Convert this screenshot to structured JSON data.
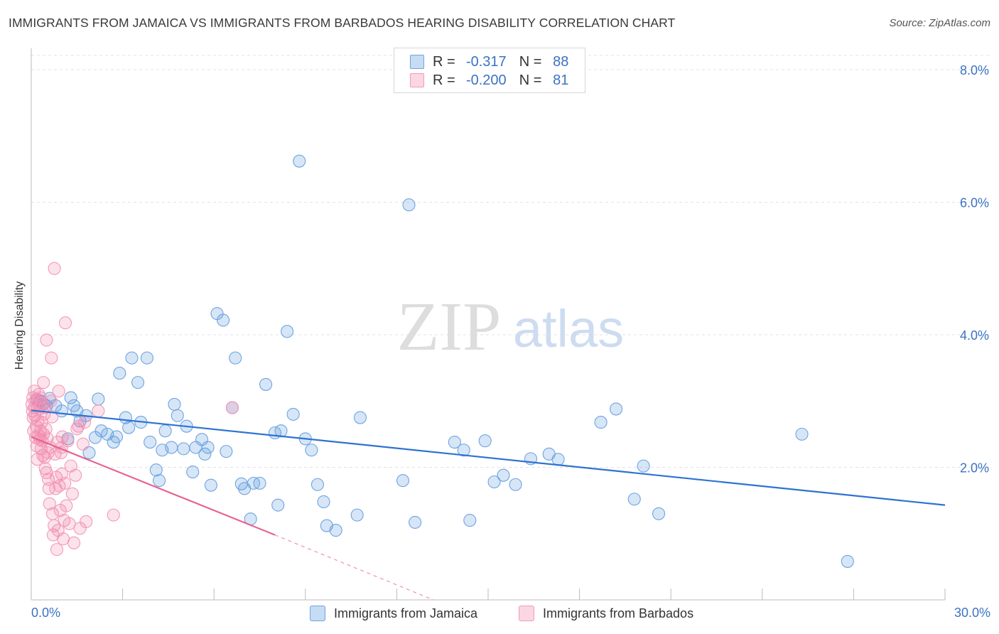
{
  "title": "IMMIGRANTS FROM JAMAICA VS IMMIGRANTS FROM BARBADOS HEARING DISABILITY CORRELATION CHART",
  "source": "Source: ZipAtlas.com",
  "watermark": {
    "zip": "ZIP",
    "atlas": "atlas"
  },
  "legend": {
    "r_key": "R =",
    "n_key": "N =",
    "rows": [
      {
        "r": "-0.317",
        "n": "88",
        "color": "#5b9ae0"
      },
      {
        "r": "-0.200",
        "n": "81",
        "color": "#f07aa3"
      }
    ]
  },
  "bottom_legend": [
    "Immigrants from Jamaica",
    "Immigrants from Barbados"
  ],
  "x_tick_labels": {
    "left": "0.0%",
    "right": "30.0%"
  },
  "colors": {
    "jamaica_fill": "rgba(91,154,224,0.25)",
    "jamaica_stroke": "#6fa3e0",
    "jamaica_line": "#2e72d2",
    "barbados_fill": "rgba(240,122,163,0.22)",
    "barbados_stroke": "#f29ab9",
    "barbados_line": "#e8628f",
    "tick_label": "#3b72c4",
    "grid": "#e3e3e3"
  },
  "chart_data": {
    "type": "scatter",
    "title": "IMMIGRANTS FROM JAMAICA VS IMMIGRANTS FROM BARBADOS HEARING DISABILITY CORRELATION CHART",
    "xlabel": "",
    "ylabel": "Hearing Disability",
    "xlim": [
      0,
      30
    ],
    "ylim": [
      0,
      8.3
    ],
    "y_ticks": [
      2,
      4,
      6,
      8
    ],
    "y_tick_labels": [
      "2.0%",
      "4.0%",
      "6.0%",
      "8.0%"
    ],
    "x_tick_labels": [
      "0.0%",
      "30.0%"
    ],
    "grid": "horizontal dashed",
    "legend_position": "top-center",
    "series": [
      {
        "name": "Immigrants from Jamaica",
        "r": -0.317,
        "n": 88,
        "trend": {
          "x": [
            0,
            30
          ],
          "y": [
            2.86,
            1.43
          ]
        },
        "points": [
          [
            0.2,
            3.02
          ],
          [
            0.3,
            3.0
          ],
          [
            0.4,
            2.96
          ],
          [
            0.5,
            2.93
          ],
          [
            0.6,
            3.04
          ],
          [
            0.8,
            2.93
          ],
          [
            1.0,
            2.85
          ],
          [
            1.2,
            2.43
          ],
          [
            1.3,
            3.05
          ],
          [
            1.4,
            2.93
          ],
          [
            1.5,
            2.85
          ],
          [
            1.6,
            2.7
          ],
          [
            1.8,
            2.78
          ],
          [
            1.9,
            2.22
          ],
          [
            2.1,
            2.45
          ],
          [
            2.2,
            3.03
          ],
          [
            2.3,
            2.55
          ],
          [
            2.5,
            2.5
          ],
          [
            2.7,
            2.38
          ],
          [
            2.8,
            2.46
          ],
          [
            2.9,
            3.42
          ],
          [
            3.1,
            2.75
          ],
          [
            3.2,
            2.6
          ],
          [
            3.3,
            3.65
          ],
          [
            3.5,
            3.28
          ],
          [
            3.6,
            2.68
          ],
          [
            3.8,
            3.65
          ],
          [
            3.9,
            2.38
          ],
          [
            4.1,
            1.96
          ],
          [
            4.2,
            1.8
          ],
          [
            4.3,
            2.26
          ],
          [
            4.4,
            2.55
          ],
          [
            4.6,
            2.3
          ],
          [
            4.7,
            2.95
          ],
          [
            4.8,
            2.78
          ],
          [
            5.0,
            2.28
          ],
          [
            5.1,
            2.62
          ],
          [
            5.3,
            1.93
          ],
          [
            5.4,
            2.3
          ],
          [
            5.6,
            2.42
          ],
          [
            5.7,
            2.2
          ],
          [
            5.8,
            2.3
          ],
          [
            5.9,
            1.73
          ],
          [
            6.1,
            4.32
          ],
          [
            6.3,
            4.22
          ],
          [
            6.4,
            2.24
          ],
          [
            6.7,
            3.65
          ],
          [
            6.9,
            1.75
          ],
          [
            7.0,
            1.68
          ],
          [
            7.2,
            1.22
          ],
          [
            7.3,
            1.76
          ],
          [
            7.5,
            1.76
          ],
          [
            7.7,
            3.25
          ],
          [
            8.0,
            2.52
          ],
          [
            8.1,
            1.43
          ],
          [
            8.4,
            4.05
          ],
          [
            8.6,
            2.8
          ],
          [
            8.8,
            6.62
          ],
          [
            9.0,
            2.43
          ],
          [
            9.2,
            2.26
          ],
          [
            9.4,
            1.74
          ],
          [
            9.6,
            1.48
          ],
          [
            9.7,
            1.12
          ],
          [
            10.0,
            1.05
          ],
          [
            10.7,
            1.28
          ],
          [
            10.8,
            2.75
          ],
          [
            12.2,
            1.8
          ],
          [
            12.4,
            5.96
          ],
          [
            12.6,
            1.17
          ],
          [
            13.9,
            2.38
          ],
          [
            14.2,
            2.26
          ],
          [
            14.4,
            1.2
          ],
          [
            14.9,
            2.4
          ],
          [
            15.2,
            1.78
          ],
          [
            15.5,
            1.88
          ],
          [
            15.9,
            1.74
          ],
          [
            16.4,
            2.13
          ],
          [
            17.0,
            2.2
          ],
          [
            17.3,
            2.12
          ],
          [
            18.7,
            2.68
          ],
          [
            19.2,
            2.88
          ],
          [
            19.8,
            1.52
          ],
          [
            20.1,
            2.02
          ],
          [
            20.6,
            1.3
          ],
          [
            25.3,
            2.5
          ],
          [
            26.8,
            0.58
          ],
          [
            8.2,
            2.55
          ],
          [
            6.6,
            2.9
          ]
        ]
      },
      {
        "name": "Immigrants from Barbados",
        "r": -0.2,
        "n": 81,
        "trend": {
          "x": [
            0,
            8.0
          ],
          "y": [
            2.46,
            0.98
          ]
        },
        "trend_dashed": {
          "x": [
            8.0,
            13.2
          ],
          "y": [
            0.98,
            0.0
          ]
        },
        "points": [
          [
            0.02,
            2.95
          ],
          [
            0.04,
            2.85
          ],
          [
            0.05,
            3.05
          ],
          [
            0.06,
            2.75
          ],
          [
            0.08,
            2.55
          ],
          [
            0.1,
            3.15
          ],
          [
            0.1,
            2.9
          ],
          [
            0.12,
            2.78
          ],
          [
            0.14,
            2.45
          ],
          [
            0.15,
            3.02
          ],
          [
            0.16,
            2.62
          ],
          [
            0.18,
            2.32
          ],
          [
            0.2,
            2.12
          ],
          [
            0.2,
            2.98
          ],
          [
            0.22,
            2.7
          ],
          [
            0.24,
            2.48
          ],
          [
            0.25,
            3.1
          ],
          [
            0.26,
            2.88
          ],
          [
            0.28,
            2.42
          ],
          [
            0.3,
            2.55
          ],
          [
            0.3,
            3.05
          ],
          [
            0.32,
            2.28
          ],
          [
            0.34,
            2.68
          ],
          [
            0.35,
            2.96
          ],
          [
            0.36,
            2.4
          ],
          [
            0.38,
            2.18
          ],
          [
            0.4,
            2.5
          ],
          [
            0.4,
            3.28
          ],
          [
            0.42,
            2.8
          ],
          [
            0.44,
            2.15
          ],
          [
            0.45,
            2.9
          ],
          [
            0.46,
            1.98
          ],
          [
            0.48,
            2.58
          ],
          [
            0.5,
            3.92
          ],
          [
            0.5,
            1.92
          ],
          [
            0.52,
            2.44
          ],
          [
            0.55,
            2.22
          ],
          [
            0.56,
            1.82
          ],
          [
            0.58,
            1.68
          ],
          [
            0.6,
            1.45
          ],
          [
            0.62,
            2.3
          ],
          [
            0.64,
            3.0
          ],
          [
            0.66,
            3.65
          ],
          [
            0.68,
            2.76
          ],
          [
            0.7,
            1.3
          ],
          [
            0.72,
            0.98
          ],
          [
            0.75,
            1.12
          ],
          [
            0.76,
            5.0
          ],
          [
            0.78,
            2.2
          ],
          [
            0.8,
            1.68
          ],
          [
            0.82,
            1.85
          ],
          [
            0.84,
            0.76
          ],
          [
            0.86,
            2.38
          ],
          [
            0.88,
            1.05
          ],
          [
            0.9,
            3.15
          ],
          [
            0.92,
            1.72
          ],
          [
            0.95,
            1.35
          ],
          [
            0.98,
            2.22
          ],
          [
            1.0,
            1.9
          ],
          [
            1.02,
            2.46
          ],
          [
            1.05,
            0.92
          ],
          [
            1.08,
            1.2
          ],
          [
            1.1,
            1.76
          ],
          [
            1.12,
            4.18
          ],
          [
            1.15,
            1.42
          ],
          [
            1.2,
            2.4
          ],
          [
            1.25,
            1.15
          ],
          [
            1.3,
            2.02
          ],
          [
            1.35,
            1.6
          ],
          [
            1.4,
            0.86
          ],
          [
            1.45,
            1.88
          ],
          [
            1.5,
            2.58
          ],
          [
            1.55,
            2.62
          ],
          [
            1.6,
            1.08
          ],
          [
            1.7,
            2.35
          ],
          [
            1.75,
            2.68
          ],
          [
            1.8,
            1.18
          ],
          [
            2.2,
            2.85
          ],
          [
            2.7,
            1.28
          ],
          [
            1.0,
            2.3
          ],
          [
            6.6,
            2.9
          ]
        ]
      }
    ]
  }
}
